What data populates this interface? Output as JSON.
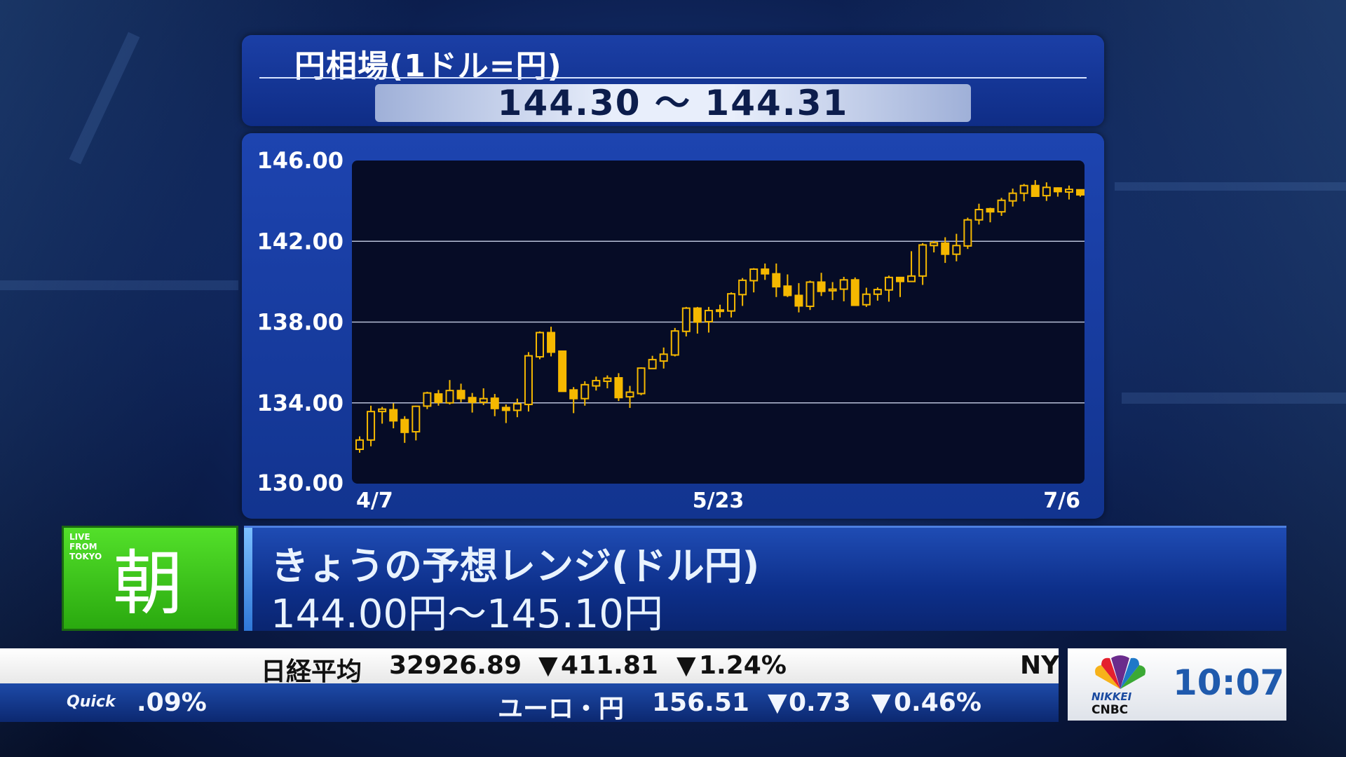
{
  "header": {
    "title": "円相場(1ドル=円)",
    "quote": "144.30 ～ 144.31"
  },
  "banner": {
    "live_label": "LIVE FROM TOKYO",
    "program": "朝",
    "headline": "きょうの予想レンジ(ドル円)",
    "range": "144.00円～145.10円",
    "green": "#3cc41c",
    "blue": "#1740a0"
  },
  "ticker": {
    "row1": {
      "name": "日経平均",
      "value": "32926.89",
      "change": "411.81",
      "pct": "1.24%",
      "next": "NY"
    },
    "row2": {
      "source": "Quick",
      "prev_tail": ".09%",
      "name": "ユーロ・円",
      "value": "156.51",
      "change": "0.73",
      "pct": "0.46%"
    },
    "down_icon": "triangle-down",
    "down_color": "#2aa8e8"
  },
  "logo": {
    "brand": "NIKKEI CNBC",
    "line1": "NIKKEI",
    "line2": "CNBC"
  },
  "clock": "10:07",
  "chart_data": {
    "type": "candlestick",
    "title": "",
    "ylim": [
      130,
      146
    ],
    "yticks": [
      "146.00",
      "142.00",
      "138.00",
      "134.00",
      "130.00"
    ],
    "xticks": [
      "4/7",
      "5/23",
      "7/6"
    ],
    "grid": true,
    "up_style": "hollow",
    "down_style": "filled",
    "color": "#f5b800",
    "candles": [
      {
        "o": 131.7,
        "h": 132.34,
        "l": 131.53,
        "c": 132.16
      },
      {
        "o": 132.16,
        "h": 133.86,
        "l": 131.85,
        "c": 133.57
      },
      {
        "o": 133.57,
        "h": 133.8,
        "l": 132.97,
        "c": 133.69
      },
      {
        "o": 133.66,
        "h": 133.98,
        "l": 132.74,
        "c": 133.11
      },
      {
        "o": 133.17,
        "h": 133.34,
        "l": 132.02,
        "c": 132.54
      },
      {
        "o": 132.57,
        "h": 133.86,
        "l": 132.14,
        "c": 133.83
      },
      {
        "o": 133.84,
        "h": 134.55,
        "l": 133.69,
        "c": 134.49
      },
      {
        "o": 134.44,
        "h": 134.64,
        "l": 133.86,
        "c": 134.03
      },
      {
        "o": 134.0,
        "h": 135.13,
        "l": 133.92,
        "c": 134.61
      },
      {
        "o": 134.61,
        "h": 134.95,
        "l": 134.03,
        "c": 134.21
      },
      {
        "o": 134.26,
        "h": 134.49,
        "l": 133.52,
        "c": 134.03
      },
      {
        "o": 134.03,
        "h": 134.72,
        "l": 133.89,
        "c": 134.21
      },
      {
        "o": 134.23,
        "h": 134.44,
        "l": 133.34,
        "c": 133.72
      },
      {
        "o": 133.77,
        "h": 133.92,
        "l": 133.0,
        "c": 133.63
      },
      {
        "o": 133.63,
        "h": 134.21,
        "l": 133.29,
        "c": 133.95
      },
      {
        "o": 133.92,
        "h": 136.51,
        "l": 133.57,
        "c": 136.33
      },
      {
        "o": 136.28,
        "h": 137.54,
        "l": 136.16,
        "c": 137.48
      },
      {
        "o": 137.48,
        "h": 137.77,
        "l": 136.3,
        "c": 136.51
      },
      {
        "o": 136.56,
        "h": 136.56,
        "l": 134.57,
        "c": 134.57
      },
      {
        "o": 134.64,
        "h": 134.78,
        "l": 133.49,
        "c": 134.21
      },
      {
        "o": 134.21,
        "h": 135.07,
        "l": 133.86,
        "c": 134.9
      },
      {
        "o": 134.84,
        "h": 135.3,
        "l": 134.61,
        "c": 135.1
      },
      {
        "o": 135.07,
        "h": 135.36,
        "l": 134.72,
        "c": 135.22
      },
      {
        "o": 135.24,
        "h": 135.47,
        "l": 134.09,
        "c": 134.26
      },
      {
        "o": 134.3,
        "h": 134.84,
        "l": 133.75,
        "c": 134.53
      },
      {
        "o": 134.46,
        "h": 135.76,
        "l": 134.38,
        "c": 135.72
      },
      {
        "o": 135.7,
        "h": 136.33,
        "l": 135.7,
        "c": 136.14
      },
      {
        "o": 136.07,
        "h": 136.74,
        "l": 135.7,
        "c": 136.41
      },
      {
        "o": 136.37,
        "h": 137.71,
        "l": 136.3,
        "c": 137.56
      },
      {
        "o": 137.54,
        "h": 138.75,
        "l": 137.29,
        "c": 138.69
      },
      {
        "o": 138.69,
        "h": 138.75,
        "l": 137.43,
        "c": 138.0
      },
      {
        "o": 138.02,
        "h": 138.75,
        "l": 137.48,
        "c": 138.57
      },
      {
        "o": 138.57,
        "h": 138.86,
        "l": 138.23,
        "c": 138.6
      },
      {
        "o": 138.55,
        "h": 139.47,
        "l": 138.23,
        "c": 139.4
      },
      {
        "o": 139.36,
        "h": 140.18,
        "l": 138.8,
        "c": 140.07
      },
      {
        "o": 140.05,
        "h": 140.67,
        "l": 139.47,
        "c": 140.62
      },
      {
        "o": 140.62,
        "h": 140.9,
        "l": 140.09,
        "c": 140.39
      },
      {
        "o": 140.39,
        "h": 140.9,
        "l": 139.24,
        "c": 139.75
      },
      {
        "o": 139.78,
        "h": 140.36,
        "l": 139.24,
        "c": 139.32
      },
      {
        "o": 139.32,
        "h": 139.93,
        "l": 138.48,
        "c": 138.8
      },
      {
        "o": 138.78,
        "h": 140.05,
        "l": 138.6,
        "c": 139.98
      },
      {
        "o": 139.98,
        "h": 140.44,
        "l": 139.29,
        "c": 139.52
      },
      {
        "o": 139.55,
        "h": 139.98,
        "l": 139.09,
        "c": 139.63
      },
      {
        "o": 139.63,
        "h": 140.24,
        "l": 139.03,
        "c": 140.09
      },
      {
        "o": 140.09,
        "h": 140.21,
        "l": 138.8,
        "c": 138.83
      },
      {
        "o": 138.86,
        "h": 139.7,
        "l": 138.75,
        "c": 139.38
      },
      {
        "o": 139.38,
        "h": 139.72,
        "l": 139.06,
        "c": 139.61
      },
      {
        "o": 139.59,
        "h": 140.3,
        "l": 139.01,
        "c": 140.21
      },
      {
        "o": 140.21,
        "h": 140.21,
        "l": 139.24,
        "c": 140.01
      },
      {
        "o": 140.01,
        "h": 141.51,
        "l": 139.98,
        "c": 140.28
      },
      {
        "o": 140.28,
        "h": 141.91,
        "l": 139.84,
        "c": 141.82
      },
      {
        "o": 141.79,
        "h": 142.02,
        "l": 141.45,
        "c": 141.93
      },
      {
        "o": 141.91,
        "h": 142.2,
        "l": 140.93,
        "c": 141.36
      },
      {
        "o": 141.36,
        "h": 142.37,
        "l": 141.01,
        "c": 141.79
      },
      {
        "o": 141.77,
        "h": 143.17,
        "l": 141.62,
        "c": 143.06
      },
      {
        "o": 143.06,
        "h": 143.86,
        "l": 142.83,
        "c": 143.57
      },
      {
        "o": 143.61,
        "h": 143.66,
        "l": 142.94,
        "c": 143.46
      },
      {
        "o": 143.46,
        "h": 144.15,
        "l": 143.26,
        "c": 144.03
      },
      {
        "o": 144.0,
        "h": 144.61,
        "l": 143.72,
        "c": 144.38
      },
      {
        "o": 144.38,
        "h": 144.84,
        "l": 143.98,
        "c": 144.76
      },
      {
        "o": 144.76,
        "h": 145.03,
        "l": 144.23,
        "c": 144.23
      },
      {
        "o": 144.26,
        "h": 144.92,
        "l": 144.0,
        "c": 144.67
      },
      {
        "o": 144.64,
        "h": 144.67,
        "l": 144.21,
        "c": 144.46
      },
      {
        "o": 144.44,
        "h": 144.76,
        "l": 144.07,
        "c": 144.57
      },
      {
        "o": 144.55,
        "h": 144.55,
        "l": 144.21,
        "c": 144.3
      }
    ]
  }
}
